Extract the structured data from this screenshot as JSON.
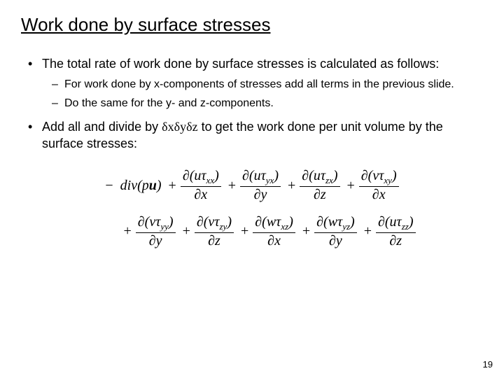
{
  "title": "Work done by surface stresses",
  "bullets": {
    "b1": "The total rate of work done by surface stresses is calculated as follows:",
    "s1": "For work done by x-components of stresses add all terms in the previous slide.",
    "s2": "Do the same for the y- and z-components.",
    "b2_pre": "Add all and divide by ",
    "b2_delta": "δxδyδz",
    "b2_post": " to get the work done per unit volume by the surface stresses:"
  },
  "equation": {
    "leading": "−",
    "div_open": "div(",
    "div_p": "p",
    "div_u": "u",
    "div_close": ")",
    "plus": "+",
    "partial": "∂",
    "tau": "τ",
    "terms_line1": [
      {
        "vel": "u",
        "sub": "xx",
        "dvar": "x"
      },
      {
        "vel": "u",
        "sub": "yx",
        "dvar": "y"
      },
      {
        "vel": "u",
        "sub": "zx",
        "dvar": "z"
      },
      {
        "vel": "v",
        "sub": "xy",
        "dvar": "x"
      }
    ],
    "terms_line2": [
      {
        "vel": "v",
        "sub": "yy",
        "dvar": "y"
      },
      {
        "vel": "v",
        "sub": "zy",
        "dvar": "z"
      },
      {
        "vel": "w",
        "sub": "xz",
        "dvar": "x"
      },
      {
        "vel": "w",
        "sub": "yz",
        "dvar": "y"
      },
      {
        "vel": "u",
        "sub": "zz",
        "dvar": "z"
      }
    ]
  },
  "page_number": "19"
}
